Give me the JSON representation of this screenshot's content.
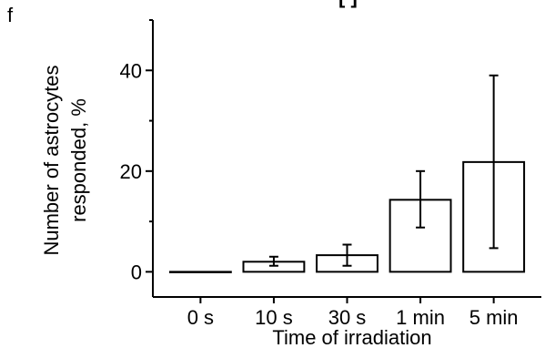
{
  "panel_label": "f",
  "top_fragment": "[  ]",
  "chart_data": {
    "type": "bar",
    "categories": [
      "0 s",
      "10 s",
      "30 s",
      "1 min",
      "5 min"
    ],
    "values": [
      0,
      2,
      3.3,
      14.3,
      21.8
    ],
    "error_low": [
      0,
      1.2,
      1.2,
      8.8,
      4.7
    ],
    "error_high": [
      0,
      3.0,
      5.4,
      20.0,
      39.0
    ],
    "xlabel": "Time of irradiation",
    "ylabel_line1": "Number of astrocytes",
    "ylabel_line2": "responded, %",
    "ylim": [
      -5,
      50
    ],
    "yticks": [
      0,
      20,
      40
    ],
    "ytick_labels": [
      "0",
      "20",
      "40"
    ],
    "grid": false,
    "bar_fill": "#ffffff",
    "bar_stroke": "#000000"
  }
}
